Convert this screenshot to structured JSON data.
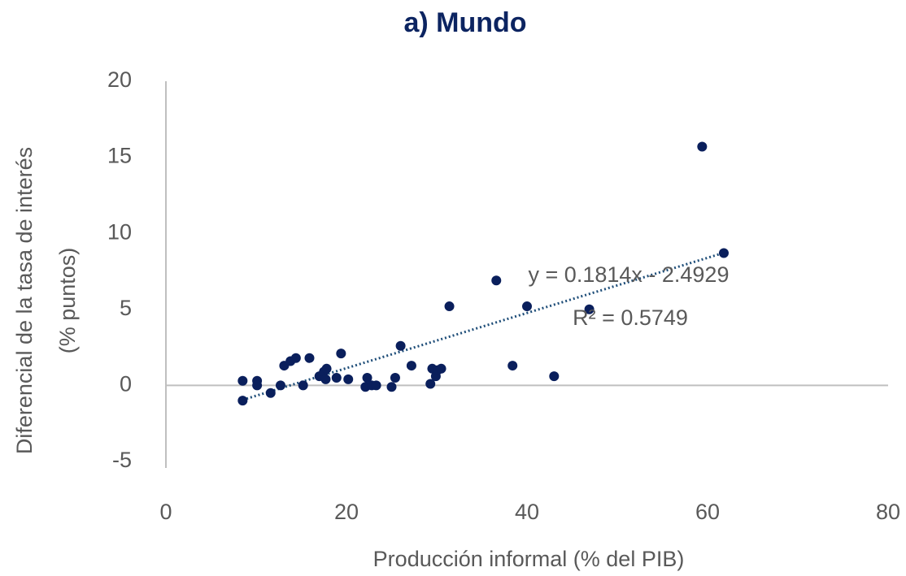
{
  "chart_data": {
    "type": "scatter",
    "title": "a) Mundo",
    "xlabel": "Producción informal (% del PIB)",
    "ylabel": [
      "Diferencial de la tasa de interés",
      "(% puntos)"
    ],
    "xlim": [
      0,
      80
    ],
    "xticks": [
      0,
      20,
      40,
      60,
      80
    ],
    "ylim": [
      -5,
      20
    ],
    "yticks": [
      -5,
      0,
      5,
      10,
      15,
      20
    ],
    "grid": false,
    "series": [
      {
        "color": "#0a1f5c",
        "x": [
          8.5,
          8.5,
          10.1,
          10.1,
          11.6,
          12.7,
          13.1,
          13.8,
          14.4,
          15.2,
          15.9,
          17.0,
          17.5,
          17.8,
          17.7,
          18.9,
          19.4,
          20.2,
          22.1,
          22.3,
          22.8,
          23.3,
          25.0,
          25.4,
          26.0,
          27.2,
          29.3,
          29.5,
          29.9,
          30.1,
          30.5,
          31.4,
          36.6,
          38.4,
          40.0,
          43.0,
          46.9,
          59.4,
          61.8
        ],
        "values": [
          0.3,
          -1.0,
          0.3,
          0.0,
          -0.5,
          0.0,
          1.3,
          1.6,
          1.8,
          0.0,
          1.8,
          0.6,
          0.9,
          1.1,
          0.4,
          0.5,
          2.1,
          0.4,
          -0.1,
          0.5,
          0.0,
          0.0,
          -0.1,
          0.5,
          2.6,
          1.3,
          0.1,
          1.1,
          0.6,
          1.0,
          1.1,
          5.2,
          6.9,
          1.3,
          5.2,
          0.6,
          5.0,
          15.7,
          8.7
        ]
      }
    ],
    "trendline": {
      "color": "#1f4e79",
      "slope": 0.1814,
      "intercept": -2.4929,
      "equation": "y = 0.1814x - 2.4929",
      "r2_label": "R² = 0.5749"
    }
  }
}
